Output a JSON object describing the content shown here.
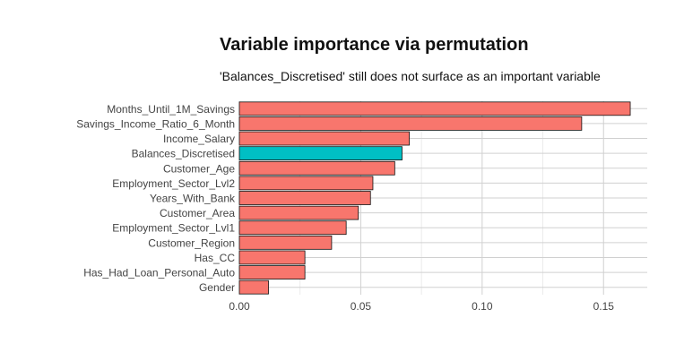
{
  "chart_data": {
    "type": "bar",
    "orientation": "horizontal",
    "title": "Variable importance via permutation",
    "subtitle": "'Balances_Discretised' still does not surface as an important variable",
    "xlabel": "",
    "ylabel": "",
    "xlim": [
      0,
      0.168
    ],
    "x_ticks": [
      "0.00",
      "0.05",
      "0.10",
      "0.15"
    ],
    "x_tick_values": [
      0,
      0.05,
      0.1,
      0.15
    ],
    "grid": true,
    "legend": "none",
    "colors": {
      "default": "#F8766D",
      "highlight": "#00BFC4",
      "outline": "#111111"
    },
    "categories": [
      "Months_Until_1M_Savings",
      "Savings_Income_Ratio_6_Month",
      "Income_Salary",
      "Balances_Discretised",
      "Customer_Age",
      "Employment_Sector_Lvl2",
      "Years_With_Bank",
      "Customer_Area",
      "Employment_Sector_Lvl1",
      "Customer_Region",
      "Has_CC",
      "Has_Had_Loan_Personal_Auto",
      "Gender"
    ],
    "values": [
      0.161,
      0.141,
      0.07,
      0.067,
      0.064,
      0.055,
      0.054,
      0.049,
      0.044,
      0.038,
      0.027,
      0.027,
      0.012
    ],
    "highlighted": [
      "Balances_Discretised"
    ]
  }
}
